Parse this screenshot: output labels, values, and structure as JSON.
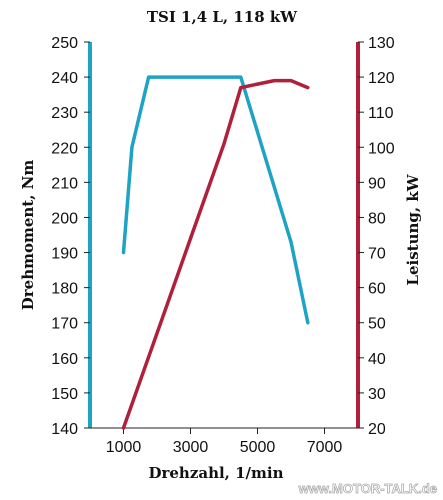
{
  "chart_data": {
    "type": "line",
    "title": "TSI  1,4 L, 118 kW",
    "xlabel": "Drehzahl, 1/min",
    "ylabel_left": "Drehmoment, Nm",
    "ylabel_right": "Leistung, kW",
    "xlim": [
      0,
      8000
    ],
    "xticks": [
      1000,
      3000,
      5000,
      7000
    ],
    "ylim_left": [
      140,
      250
    ],
    "yticks_left": [
      140,
      150,
      160,
      170,
      180,
      190,
      200,
      210,
      220,
      230,
      240,
      250
    ],
    "ylim_right": [
      20,
      130
    ],
    "yticks_right": [
      20,
      30,
      40,
      50,
      60,
      70,
      80,
      90,
      100,
      110,
      120,
      130
    ],
    "grid": false,
    "legend": "none",
    "series": [
      {
        "axis": "left",
        "color": "#1ea3c4",
        "points": [
          [
            1000,
            190
          ],
          [
            1250,
            220
          ],
          [
            1750,
            240
          ],
          [
            4500,
            240
          ],
          [
            6000,
            193
          ],
          [
            6500,
            170
          ]
        ]
      },
      {
        "axis": "right",
        "color": "#b0203c",
        "points": [
          [
            1000,
            20
          ],
          [
            2000,
            47
          ],
          [
            3000,
            74
          ],
          [
            4000,
            101
          ],
          [
            4500,
            117
          ],
          [
            5000,
            118
          ],
          [
            5500,
            119
          ],
          [
            6000,
            119
          ],
          [
            6500,
            117
          ]
        ]
      }
    ]
  },
  "watermark": "www.MOTOR-TALK.de"
}
